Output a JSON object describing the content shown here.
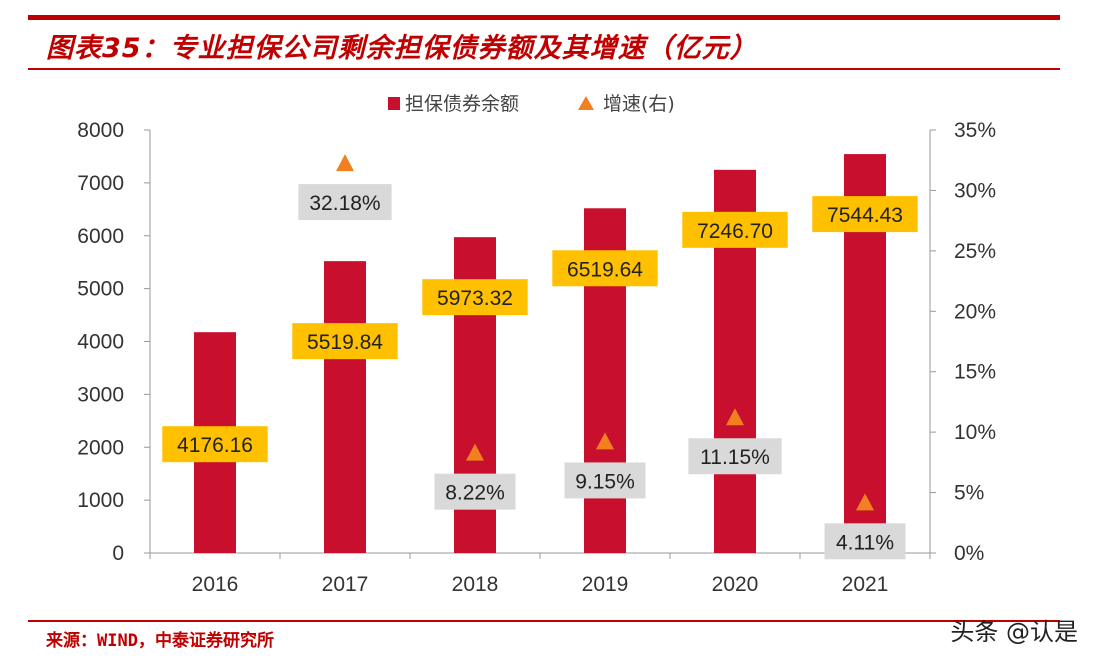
{
  "page": {
    "title": "图表35：专业担保公司剩余担保债券额及其增速（亿元）",
    "source": "来源：WIND，中泰证券研究所",
    "watermark": "头条 @认是"
  },
  "chart_data": {
    "type": "bar",
    "categories": [
      "2016",
      "2017",
      "2018",
      "2019",
      "2020",
      "2021"
    ],
    "series": [
      {
        "name": "担保债券余额",
        "type": "bar",
        "axis": "left",
        "color": "#c8102e",
        "values": [
          4176.16,
          5519.84,
          5973.32,
          6519.64,
          7246.7,
          7544.43
        ],
        "labels": [
          "4176.16",
          "5519.84",
          "5973.32",
          "6519.64",
          "7246.70",
          "7544.43"
        ]
      },
      {
        "name": "增速(右)",
        "type": "marker",
        "axis": "right",
        "color": "#f08020",
        "values": [
          null,
          32.18,
          8.22,
          9.15,
          11.15,
          4.11
        ],
        "labels": [
          "",
          "32.18%",
          "8.22%",
          "9.15%",
          "11.15%",
          "4.11%"
        ]
      }
    ],
    "y_left": {
      "min": 0,
      "max": 8000,
      "ticks": [
        "0",
        "1000",
        "2000",
        "3000",
        "4000",
        "5000",
        "6000",
        "7000",
        "8000"
      ]
    },
    "y_right": {
      "min": 0,
      "max": 35,
      "ticks": [
        "0%",
        "5%",
        "10%",
        "15%",
        "20%",
        "25%",
        "30%",
        "35%"
      ]
    },
    "legend_position": "top-center",
    "colors": {
      "bar_label_bg": "#ffc000",
      "growth_label_bg": "#d9d9d9",
      "accent": "#c00000"
    }
  }
}
